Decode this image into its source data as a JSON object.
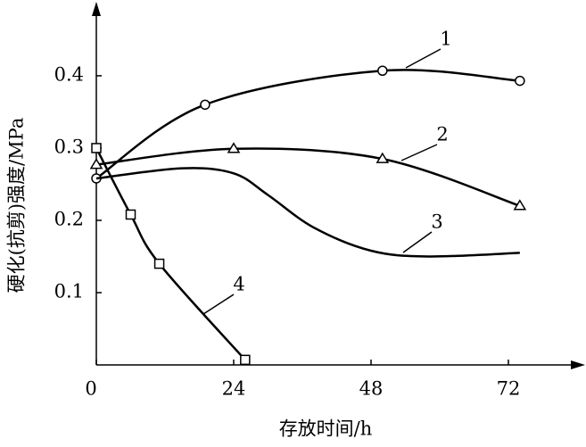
{
  "chart_data": {
    "type": "line",
    "x_label": "存放时间/h",
    "y_label": "硬化(抗剪)强度/MPa",
    "xlim": [
      0,
      84
    ],
    "ylim": [
      0,
      0.49
    ],
    "xticks": [
      0,
      24,
      48,
      72
    ],
    "yticks": [
      0.1,
      0.2,
      0.3,
      0.4
    ],
    "color": "#000000",
    "series": [
      {
        "name": "1",
        "marker": "circle",
        "x": [
          0,
          19,
          50,
          74
        ],
        "values": [
          0.258,
          0.36,
          0.407,
          0.393
        ]
      },
      {
        "name": "2",
        "marker": "triangle",
        "x": [
          0,
          24,
          50,
          74
        ],
        "values": [
          0.277,
          0.299,
          0.285,
          0.22
        ]
      },
      {
        "name": "3",
        "x": [
          0,
          15,
          24,
          30,
          38,
          48,
          58,
          74
        ],
        "values": [
          0.258,
          0.272,
          0.265,
          0.235,
          0.19,
          0.158,
          0.15,
          0.155
        ]
      },
      {
        "name": "4",
        "marker": "square",
        "x": [
          0,
          6,
          11,
          26
        ],
        "values": [
          0.3,
          0.208,
          0.14,
          0.007
        ]
      }
    ]
  }
}
